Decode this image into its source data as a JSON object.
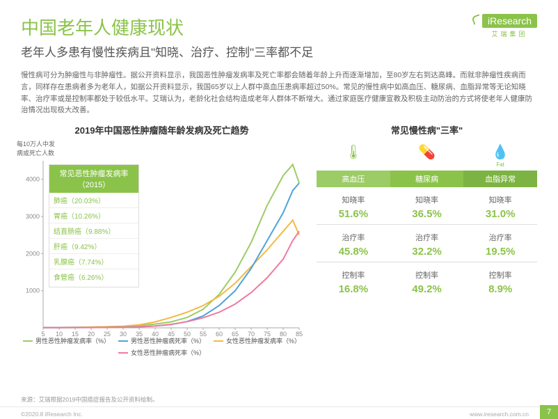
{
  "header": {
    "main_title": "中国老年人健康现状",
    "subtitle": "老年人多患有慢性疾病且\"知晓、治疗、控制\"三率都不足",
    "logo_text": "iResearch",
    "logo_sub": "艾瑞集团"
  },
  "body_text": "慢性病可分为肿瘤性与非肿瘤性。据公开资料显示，我国恶性肿瘤发病率及死亡率都会随着年龄上升而逐渐增加，至80岁左右到达高峰。而就非肿瘤性疾病而言，同样存在患病者多为老年人，如据公开资料显示，我国65岁以上人群中高血压患病率超过50%。常见的慢性病中如高血压、糖尿病、血脂异常等无论知晓率、治疗率或是控制率都处于较低水平。艾瑞认为，老龄化社会结构造成老年人群体不断增大。通过家庭医疗健康宣教及积极主动防治的方式将使老年人健康防治情况出现极大改善。",
  "chart": {
    "ylabel_l1": "每10万人中发",
    "ylabel_l2": "病或死亡人数",
    "title": "2019年中国恶性肿瘤随年龄发病及死亡趋势",
    "y_ticks": [
      1000,
      2000,
      3000,
      4000
    ],
    "x_ticks": [
      5,
      10,
      15,
      20,
      25,
      30,
      35,
      40,
      45,
      50,
      55,
      60,
      65,
      70,
      75,
      80,
      85
    ],
    "ylim": [
      0,
      4500
    ],
    "xlim": [
      5,
      85
    ],
    "series": {
      "male_incidence": {
        "color": "#9ccc65",
        "values": [
          10,
          10,
          15,
          20,
          30,
          40,
          60,
          100,
          160,
          280,
          500,
          900,
          1500,
          2300,
          3300,
          4100,
          4400,
          3900
        ]
      },
      "female_incidence": {
        "color": "#f4b942",
        "values": [
          10,
          10,
          12,
          18,
          30,
          45,
          80,
          160,
          280,
          420,
          600,
          850,
          1200,
          1650,
          2100,
          2600,
          2900,
          2500
        ]
      },
      "male_death": {
        "color": "#4fa3d9",
        "values": [
          5,
          5,
          7,
          9,
          12,
          18,
          28,
          50,
          90,
          170,
          320,
          600,
          1000,
          1600,
          2350,
          3100,
          3700,
          3900
        ]
      },
      "female_death": {
        "color": "#ef7b9c",
        "values": [
          5,
          5,
          6,
          8,
          10,
          15,
          25,
          50,
          95,
          165,
          270,
          420,
          640,
          950,
          1350,
          1850,
          2350,
          2600
        ]
      }
    },
    "legend": {
      "male_incidence": "男性恶性肿瘤发病率（%）",
      "male_death": "男性恶性肿瘤病死率（%）",
      "female_incidence": "女性恶性肿瘤发病率（%）",
      "female_death": "女性恶性肿瘤病死率（%）"
    }
  },
  "tumor_box": {
    "head_l1": "常见恶性肿瘤发病率",
    "head_l2": "（2015）",
    "rows": [
      "肺癌（20.03%）",
      "胃癌（10.26%）",
      "结直肠癌（9.88%）",
      "肝癌（9.42%）",
      "乳腺癌（7.74%）",
      "食管癌（6.26%）"
    ]
  },
  "three_rates": {
    "title": "常见慢性病\"三率\"",
    "icons": [
      "🌡",
      "💊",
      "💧"
    ],
    "icon_sub": [
      "",
      "",
      "Fat"
    ],
    "conditions": [
      "高血压",
      "糖尿病",
      "血脂异常"
    ],
    "blocks": [
      {
        "label": "知晓率",
        "values": [
          "51.6%",
          "36.5%",
          "31.0%"
        ]
      },
      {
        "label": "治疗率",
        "values": [
          "45.8%",
          "32.2%",
          "19.5%"
        ]
      },
      {
        "label": "控制率",
        "values": [
          "16.8%",
          "49.2%",
          "8.9%"
        ]
      }
    ]
  },
  "source": "来源：艾瑞根据2019中国癌症报告及公开资料绘制。",
  "footer": {
    "copyright": "©2020.8 iResearch Inc.",
    "url": "www.iresearch.com.cn",
    "page": "7"
  }
}
